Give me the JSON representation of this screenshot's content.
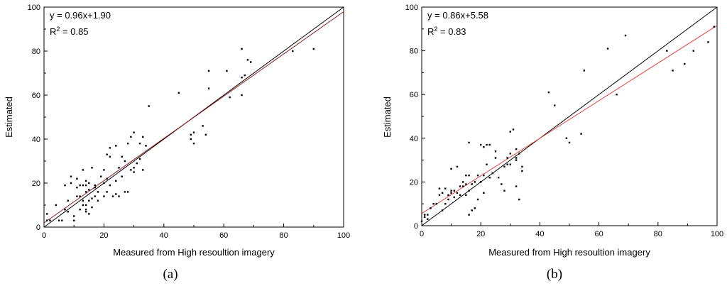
{
  "chart_data": [
    {
      "type": "scatter",
      "panel_label": "(a)",
      "xlabel": "Measured from High resoultion imagery",
      "ylabel": "Estimated",
      "xlim": [
        0,
        100
      ],
      "ylim": [
        0,
        100
      ],
      "xticks": [
        "0",
        "20",
        "40",
        "60",
        "80",
        "100"
      ],
      "yticks": [
        "0",
        "20",
        "40",
        "60",
        "80",
        "100"
      ],
      "grid": false,
      "annotations": [
        "y = 0.96x+1.90",
        "R",
        "2",
        " = 0.85"
      ],
      "reference_line": {
        "slope": 1,
        "intercept": 0,
        "color": "#000000"
      },
      "fit_line": {
        "slope": 0.96,
        "intercept": 1.9,
        "color": "#8b1a1a"
      },
      "points": [
        [
          1,
          6
        ],
        [
          1,
          3
        ],
        [
          2,
          3
        ],
        [
          4,
          10
        ],
        [
          5,
          3
        ],
        [
          6,
          3
        ],
        [
          7,
          8
        ],
        [
          7,
          19
        ],
        [
          8,
          7
        ],
        [
          8,
          12
        ],
        [
          9,
          20
        ],
        [
          9,
          23
        ],
        [
          10,
          5
        ],
        [
          10,
          3
        ],
        [
          11,
          14
        ],
        [
          11,
          22
        ],
        [
          11,
          18
        ],
        [
          12,
          14
        ],
        [
          12,
          8
        ],
        [
          12,
          19
        ],
        [
          13,
          10
        ],
        [
          13,
          12
        ],
        [
          13,
          26
        ],
        [
          13,
          19
        ],
        [
          14,
          8
        ],
        [
          14,
          10
        ],
        [
          14,
          7
        ],
        [
          14,
          16
        ],
        [
          14,
          21
        ],
        [
          14,
          19
        ],
        [
          15,
          6
        ],
        [
          15,
          12
        ],
        [
          15,
          17
        ],
        [
          15,
          20
        ],
        [
          16,
          9
        ],
        [
          16,
          13
        ],
        [
          16,
          27
        ],
        [
          17,
          18
        ],
        [
          17,
          19
        ],
        [
          17,
          14
        ],
        [
          18,
          16
        ],
        [
          18,
          12
        ],
        [
          19,
          23
        ],
        [
          20,
          14
        ],
        [
          20,
          20
        ],
        [
          20,
          26
        ],
        [
          21,
          33
        ],
        [
          21,
          16
        ],
        [
          21,
          22
        ],
        [
          22,
          36
        ],
        [
          22,
          19
        ],
        [
          22,
          32
        ],
        [
          23,
          14
        ],
        [
          24,
          15
        ],
        [
          24,
          21
        ],
        [
          24,
          37
        ],
        [
          25,
          14
        ],
        [
          25,
          27
        ],
        [
          26,
          23
        ],
        [
          26,
          32
        ],
        [
          27,
          16
        ],
        [
          27,
          30
        ],
        [
          28,
          16
        ],
        [
          28,
          38
        ],
        [
          29,
          26
        ],
        [
          29,
          41
        ],
        [
          30,
          43
        ],
        [
          30,
          25
        ],
        [
          30,
          27
        ],
        [
          31,
          29
        ],
        [
          32,
          31
        ],
        [
          32,
          38
        ],
        [
          33,
          26
        ],
        [
          33,
          41
        ],
        [
          34,
          37
        ],
        [
          35,
          55
        ],
        [
          45,
          61
        ],
        [
          49,
          40
        ],
        [
          49,
          42
        ],
        [
          50,
          38
        ],
        [
          50,
          43
        ],
        [
          53,
          46
        ],
        [
          54,
          42
        ],
        [
          55,
          63
        ],
        [
          55,
          71
        ],
        [
          61,
          71
        ],
        [
          62,
          59
        ],
        [
          66,
          60
        ],
        [
          66,
          68
        ],
        [
          66,
          81
        ],
        [
          67,
          69
        ],
        [
          68,
          76
        ],
        [
          69,
          75
        ],
        [
          83,
          80
        ],
        [
          90,
          81
        ]
      ]
    },
    {
      "type": "scatter",
      "panel_label": "(b)",
      "xlabel": "Measured from High resoultion imagery",
      "ylabel": "Estimated",
      "xlim": [
        0,
        100
      ],
      "ylim": [
        0,
        100
      ],
      "xticks": [
        "0",
        "20",
        "40",
        "60",
        "80",
        "100"
      ],
      "yticks": [
        "0",
        "20",
        "40",
        "60",
        "80",
        "100"
      ],
      "grid": false,
      "annotations": [
        "y = 0.86x+5.58",
        "R",
        "2",
        " = 0.83"
      ],
      "reference_line": {
        "slope": 1,
        "intercept": 0,
        "color": "#000000"
      },
      "fit_line": {
        "slope": 0.86,
        "intercept": 5.58,
        "color": "#e8413c"
      },
      "points": [
        [
          0,
          2
        ],
        [
          1,
          4
        ],
        [
          1,
          5
        ],
        [
          2,
          3
        ],
        [
          2,
          5
        ],
        [
          3,
          8
        ],
        [
          4,
          10
        ],
        [
          5,
          10
        ],
        [
          6,
          14
        ],
        [
          6,
          17
        ],
        [
          7,
          7
        ],
        [
          7,
          15
        ],
        [
          8,
          17
        ],
        [
          8,
          10
        ],
        [
          9,
          12
        ],
        [
          9,
          14
        ],
        [
          10,
          15
        ],
        [
          10,
          16
        ],
        [
          10,
          26
        ],
        [
          11,
          13
        ],
        [
          11,
          16
        ],
        [
          12,
          27
        ],
        [
          12,
          15
        ],
        [
          13,
          18
        ],
        [
          13,
          14
        ],
        [
          14,
          18
        ],
        [
          14,
          20
        ],
        [
          15,
          19
        ],
        [
          15,
          23
        ],
        [
          15,
          14
        ],
        [
          16,
          5
        ],
        [
          16,
          23
        ],
        [
          16,
          16
        ],
        [
          16,
          38
        ],
        [
          17,
          7
        ],
        [
          17,
          19
        ],
        [
          18,
          8
        ],
        [
          18,
          20
        ],
        [
          19,
          12
        ],
        [
          19,
          23
        ],
        [
          20,
          20
        ],
        [
          20,
          37
        ],
        [
          21,
          23
        ],
        [
          21,
          36
        ],
        [
          21,
          15
        ],
        [
          22,
          37
        ],
        [
          22,
          28
        ],
        [
          23,
          37
        ],
        [
          23,
          22
        ],
        [
          24,
          24
        ],
        [
          25,
          31
        ],
        [
          25,
          34
        ],
        [
          26,
          22
        ],
        [
          27,
          19
        ],
        [
          28,
          27
        ],
        [
          28,
          16
        ],
        [
          29,
          28
        ],
        [
          29,
          31
        ],
        [
          30,
          28
        ],
        [
          30,
          33
        ],
        [
          30,
          43
        ],
        [
          31,
          44
        ],
        [
          32,
          18
        ],
        [
          32,
          30
        ],
        [
          32,
          31
        ],
        [
          32,
          35
        ],
        [
          33,
          33
        ],
        [
          33,
          12
        ],
        [
          34,
          25
        ],
        [
          34,
          27
        ],
        [
          43,
          61
        ],
        [
          45,
          55
        ],
        [
          49,
          40
        ],
        [
          50,
          38
        ],
        [
          54,
          42
        ],
        [
          55,
          71
        ],
        [
          63,
          81
        ],
        [
          66,
          60
        ],
        [
          69,
          87
        ],
        [
          83,
          80
        ],
        [
          85,
          71
        ],
        [
          89,
          74
        ],
        [
          92,
          80
        ],
        [
          97,
          84
        ],
        [
          99,
          91
        ]
      ]
    }
  ]
}
